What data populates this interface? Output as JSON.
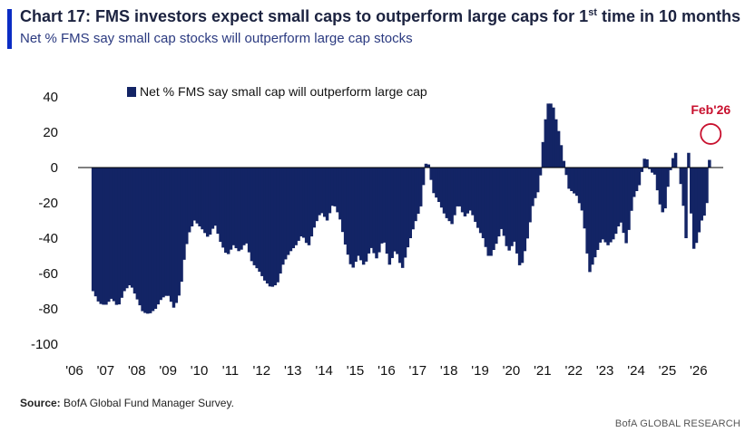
{
  "header": {
    "title_main": "Chart 17: FMS investors expect small caps to outperform large caps for 1",
    "title_sup": "st",
    "title_tail": " time in 10 months",
    "subtitle": "Net % FMS say small cap stocks will outperform large cap stocks",
    "accent_color": "#0b2cc4"
  },
  "footer": {
    "source_label": "Source:",
    "source_text": " BofA Global Fund Manager Survey.",
    "brand": "BofA GLOBAL RESEARCH"
  },
  "chart_data": {
    "type": "bar",
    "legend": "Net % FMS say small cap will outperform large cap",
    "legend_position": "top-left",
    "bar_color": "#132465",
    "grid": false,
    "ylim": [
      -100,
      40
    ],
    "yticks": [
      "40",
      "20",
      "0",
      "-20",
      "-40",
      "-60",
      "-80",
      "-100"
    ],
    "xticks": [
      "'06",
      "'07",
      "'08",
      "'09",
      "'10",
      "'11",
      "'12",
      "'13",
      "'14",
      "'15",
      "'16",
      "'17",
      "'18",
      "'19",
      "'20",
      "'21",
      "'22",
      "'23",
      "'24",
      "'25",
      "'26"
    ],
    "x_start": 2006.0,
    "x_end": 2026.5,
    "annotation": {
      "label": "Feb'26",
      "color": "#c8102e",
      "x": 2026.1,
      "y": 19
    },
    "keypoints": [
      [
        2006.3,
        -70
      ],
      [
        2006.5,
        -77
      ],
      [
        2006.7,
        -78
      ],
      [
        2006.9,
        -74
      ],
      [
        2007.1,
        -79
      ],
      [
        2007.3,
        -70
      ],
      [
        2007.5,
        -66
      ],
      [
        2007.7,
        -74
      ],
      [
        2007.9,
        -82
      ],
      [
        2008.1,
        -83
      ],
      [
        2008.3,
        -80
      ],
      [
        2008.5,
        -74
      ],
      [
        2008.7,
        -72
      ],
      [
        2008.9,
        -80
      ],
      [
        2009.1,
        -70
      ],
      [
        2009.2,
        -54
      ],
      [
        2009.35,
        -38
      ],
      [
        2009.55,
        -30
      ],
      [
        2009.8,
        -35
      ],
      [
        2010.0,
        -40
      ],
      [
        2010.2,
        -32
      ],
      [
        2010.4,
        -43
      ],
      [
        2010.6,
        -50
      ],
      [
        2010.8,
        -44
      ],
      [
        2011.0,
        -48
      ],
      [
        2011.2,
        -42
      ],
      [
        2011.4,
        -54
      ],
      [
        2011.6,
        -58
      ],
      [
        2011.8,
        -64
      ],
      [
        2012.0,
        -68
      ],
      [
        2012.2,
        -66
      ],
      [
        2012.4,
        -54
      ],
      [
        2012.6,
        -48
      ],
      [
        2012.8,
        -44
      ],
      [
        2013.0,
        -38
      ],
      [
        2013.2,
        -45
      ],
      [
        2013.4,
        -33
      ],
      [
        2013.6,
        -25
      ],
      [
        2013.8,
        -30
      ],
      [
        2014.0,
        -20
      ],
      [
        2014.2,
        -28
      ],
      [
        2014.4,
        -45
      ],
      [
        2014.6,
        -58
      ],
      [
        2014.8,
        -50
      ],
      [
        2015.0,
        -56
      ],
      [
        2015.2,
        -45
      ],
      [
        2015.4,
        -52
      ],
      [
        2015.6,
        -40
      ],
      [
        2015.8,
        -55
      ],
      [
        2016.0,
        -46
      ],
      [
        2016.2,
        -58
      ],
      [
        2016.4,
        -44
      ],
      [
        2016.6,
        -32
      ],
      [
        2016.8,
        -22
      ],
      [
        2017.0,
        7
      ],
      [
        2017.2,
        -14
      ],
      [
        2017.4,
        -20
      ],
      [
        2017.6,
        -28
      ],
      [
        2017.8,
        -32
      ],
      [
        2018.0,
        -20
      ],
      [
        2018.2,
        -28
      ],
      [
        2018.4,
        -24
      ],
      [
        2018.6,
        -33
      ],
      [
        2018.8,
        -40
      ],
      [
        2019.0,
        -52
      ],
      [
        2019.2,
        -44
      ],
      [
        2019.4,
        -34
      ],
      [
        2019.6,
        -48
      ],
      [
        2019.8,
        -42
      ],
      [
        2020.0,
        -58
      ],
      [
        2020.2,
        -42
      ],
      [
        2020.4,
        -20
      ],
      [
        2020.6,
        -12
      ],
      [
        2020.75,
        22
      ],
      [
        2020.9,
        38
      ],
      [
        2021.05,
        34
      ],
      [
        2021.25,
        18
      ],
      [
        2021.4,
        2
      ],
      [
        2021.55,
        -12
      ],
      [
        2021.8,
        -16
      ],
      [
        2022.0,
        -26
      ],
      [
        2022.2,
        -60
      ],
      [
        2022.4,
        -50
      ],
      [
        2022.6,
        -40
      ],
      [
        2022.8,
        -44
      ],
      [
        2023.0,
        -40
      ],
      [
        2023.2,
        -30
      ],
      [
        2023.4,
        -44
      ],
      [
        2023.6,
        -18
      ],
      [
        2023.8,
        -10
      ],
      [
        2024.0,
        8
      ],
      [
        2024.15,
        -2
      ],
      [
        2024.3,
        -4
      ],
      [
        2024.45,
        -20
      ],
      [
        2024.6,
        -28
      ],
      [
        2024.75,
        -6
      ],
      [
        2024.85,
        3
      ],
      [
        2024.95,
        10
      ],
      [
        2025.1,
        -5
      ],
      [
        2025.2,
        -18
      ],
      [
        2025.3,
        -40
      ],
      [
        2025.4,
        18
      ],
      [
        2025.5,
        -48
      ],
      [
        2025.65,
        -42
      ],
      [
        2025.8,
        -30
      ],
      [
        2025.95,
        -25
      ],
      [
        2026.1,
        19
      ]
    ]
  }
}
